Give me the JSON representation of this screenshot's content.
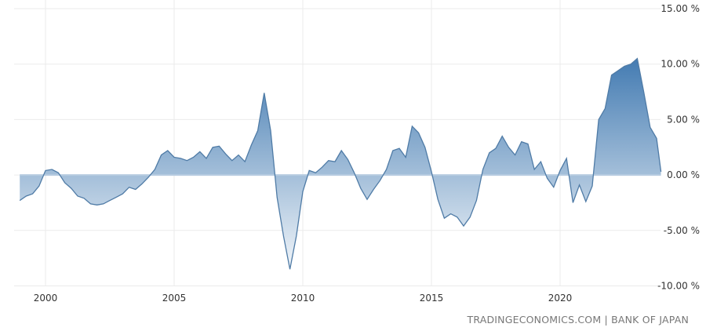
{
  "chart_data": {
    "type": "area",
    "title": "",
    "xlabel": "",
    "ylabel": "",
    "xlim": [
      1998.9,
      2023.95
    ],
    "ylim": [
      -10,
      15
    ],
    "grid": true,
    "y_axis_side": "right",
    "x_ticks": [
      2000,
      2005,
      2010,
      2015,
      2020
    ],
    "x_tick_labels": [
      "2000",
      "2005",
      "2010",
      "2015",
      "2020"
    ],
    "y_ticks": [
      15,
      10,
      5,
      0,
      -5,
      -10
    ],
    "y_tick_labels": [
      "15.00 %",
      "10.00 %",
      "5.00 %",
      "0.00 %",
      "-5.00 %",
      "-10.00 %"
    ],
    "colors": {
      "line": "#4f7ba6",
      "fill_top": "#3f78b0",
      "fill_bottom": "#ffffff",
      "zero_band": "#b7cce0",
      "grid": "#ebebeb"
    },
    "series": [
      {
        "x": [
          1999.0,
          1999.25,
          1999.5,
          1999.75,
          2000.0,
          2000.25,
          2000.5,
          2000.75,
          2001.0,
          2001.25,
          2001.5,
          2001.75,
          2002.0,
          2002.25,
          2002.5,
          2002.75,
          2003.0,
          2003.25,
          2003.5,
          2003.75,
          2004.0,
          2004.25,
          2004.5,
          2004.75,
          2005.0,
          2005.25,
          2005.5,
          2005.75,
          2006.0,
          2006.25,
          2006.5,
          2006.75,
          2007.0,
          2007.25,
          2007.5,
          2007.75,
          2008.0,
          2008.25,
          2008.5,
          2008.75,
          2009.0,
          2009.25,
          2009.5,
          2009.75,
          2010.0,
          2010.25,
          2010.5,
          2010.75,
          2011.0,
          2011.25,
          2011.5,
          2011.75,
          2012.0,
          2012.25,
          2012.5,
          2012.75,
          2013.0,
          2013.25,
          2013.5,
          2013.75,
          2014.0,
          2014.25,
          2014.5,
          2014.75,
          2015.0,
          2015.25,
          2015.5,
          2015.75,
          2016.0,
          2016.25,
          2016.5,
          2016.75,
          2017.0,
          2017.25,
          2017.5,
          2017.75,
          2018.0,
          2018.25,
          2018.5,
          2018.75,
          2019.0,
          2019.25,
          2019.5,
          2019.75,
          2020.0,
          2020.25,
          2020.5,
          2020.75,
          2021.0,
          2021.25,
          2021.5,
          2021.75,
          2022.0,
          2022.25,
          2022.5,
          2022.75,
          2023.0,
          2023.25,
          2023.5,
          2023.75,
          2023.92
        ],
        "values": [
          -2.3,
          -1.9,
          -1.7,
          -1.0,
          0.4,
          0.5,
          0.2,
          -0.7,
          -1.2,
          -1.9,
          -2.1,
          -2.6,
          -2.7,
          -2.6,
          -2.3,
          -2.0,
          -1.7,
          -1.1,
          -1.3,
          -0.8,
          -0.2,
          0.5,
          1.8,
          2.2,
          1.6,
          1.5,
          1.3,
          1.6,
          2.1,
          1.5,
          2.5,
          2.6,
          1.9,
          1.3,
          1.8,
          1.2,
          2.7,
          4.0,
          7.4,
          4.0,
          -2.0,
          -5.5,
          -8.5,
          -5.5,
          -1.5,
          0.4,
          0.2,
          0.7,
          1.3,
          1.2,
          2.2,
          1.4,
          0.2,
          -1.2,
          -2.2,
          -1.3,
          -0.5,
          0.5,
          2.2,
          2.4,
          1.6,
          4.4,
          3.8,
          2.5,
          0.3,
          -2.2,
          -3.9,
          -3.5,
          -3.8,
          -4.6,
          -3.8,
          -2.3,
          0.5,
          2.0,
          2.4,
          3.5,
          2.5,
          1.8,
          3.0,
          2.8,
          0.5,
          1.2,
          -0.3,
          -1.1,
          0.4,
          1.5,
          -2.5,
          -0.9,
          -2.4,
          -1.0,
          5.0,
          6.0,
          9.0,
          9.4,
          9.8,
          10.0,
          10.5,
          7.5,
          4.3,
          3.3,
          0.3
        ]
      }
    ]
  },
  "credit": "TRADINGECONOMICS.COM | BANK OF JAPAN"
}
